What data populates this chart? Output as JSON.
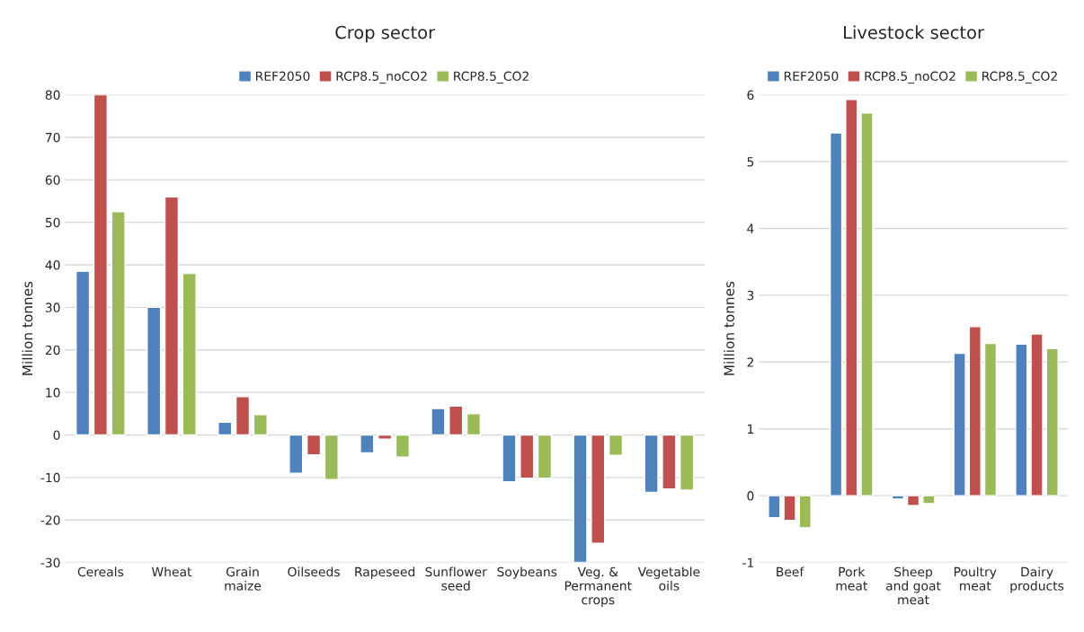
{
  "chart_data": [
    {
      "type": "bar",
      "title": "Crop sector",
      "ylabel": "Million tonnes",
      "categories": [
        "Cereals",
        "Wheat",
        "Grain\nmaize",
        "Oilseeds",
        "Rapeseed",
        "Sunflower\nseed",
        "Soybeans",
        "Veg. &\nPermanent\ncrops",
        "Vegetable\noils"
      ],
      "series": [
        {
          "name": "REF2050",
          "color": "#4f81bd",
          "values": [
            38.5,
            30,
            3,
            -9,
            -4.2,
            6.2,
            -11,
            -30,
            -13.5
          ]
        },
        {
          "name": "RCP8.5_noCO2",
          "color": "#c0504d",
          "values": [
            80,
            56,
            9,
            -4.7,
            -1,
            6.8,
            -10.2,
            -25.5,
            -12.7
          ]
        },
        {
          "name": "RCP8.5_CO2",
          "color": "#9bbb59",
          "values": [
            52.5,
            38,
            4.8,
            -10.5,
            -5.2,
            5,
            -10.2,
            -4.8,
            -13
          ]
        }
      ],
      "ylim": [
        -30,
        80
      ],
      "yticks": [
        -30,
        -20,
        -10,
        0,
        10,
        20,
        30,
        40,
        50,
        60,
        70,
        80
      ],
      "grid": "y",
      "legend": "top"
    },
    {
      "type": "bar",
      "title": "Livestock sector",
      "ylabel": "Million tonnes",
      "categories": [
        "Beef",
        "Pork\nmeat",
        "Sheep\nand goat\nmeat",
        "Poultry\nmeat",
        "Dairy\nproducts"
      ],
      "series": [
        {
          "name": "REF2050",
          "color": "#4f81bd",
          "values": [
            -0.33,
            5.43,
            -0.05,
            2.13,
            2.27
          ]
        },
        {
          "name": "RCP8.5_noCO2",
          "color": "#c0504d",
          "values": [
            -0.37,
            5.93,
            -0.15,
            2.53,
            2.42
          ]
        },
        {
          "name": "RCP8.5_CO2",
          "color": "#9bbb59",
          "values": [
            -0.48,
            5.73,
            -0.12,
            2.28,
            2.2
          ]
        }
      ],
      "ylim": [
        -1,
        6
      ],
      "yticks": [
        -1,
        0,
        1,
        2,
        3,
        4,
        5,
        6
      ],
      "grid": "y",
      "legend": "top"
    }
  ]
}
